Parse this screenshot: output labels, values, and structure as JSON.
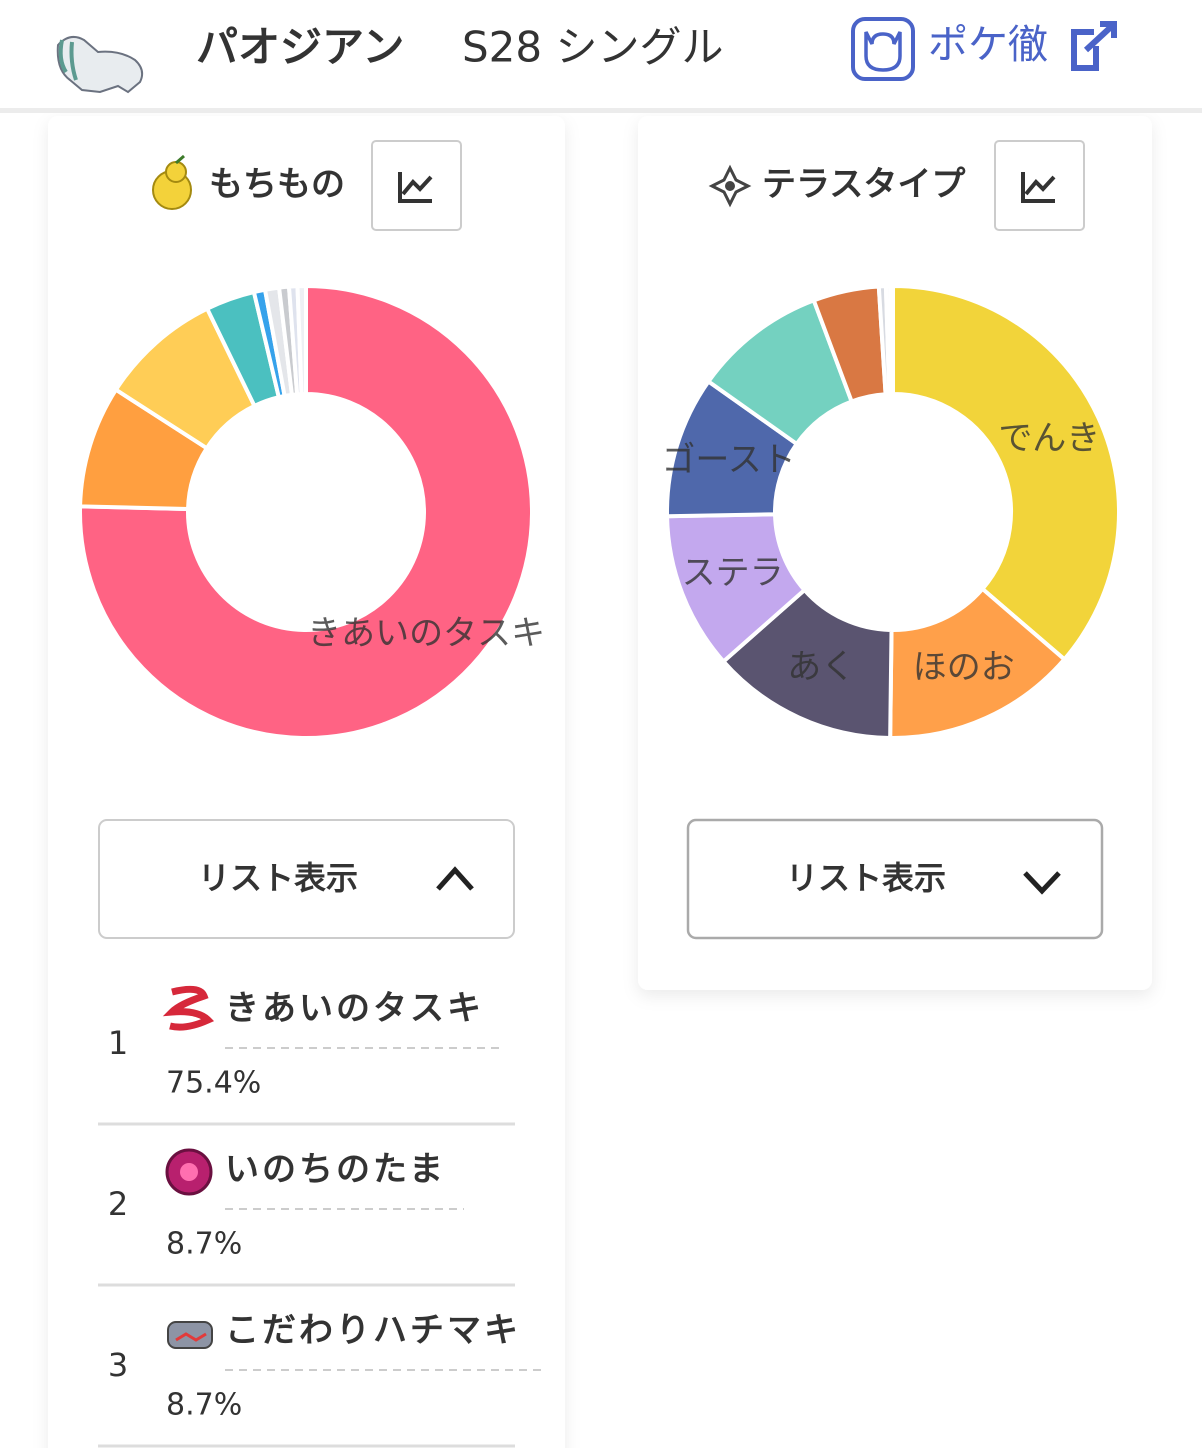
{
  "header": {
    "title": "パオジアン",
    "subtitle": "S28 シングル",
    "link": "ポケ徹"
  },
  "chart_data": [
    {
      "type": "pie",
      "title": "もちもの",
      "categories": [
        "きあいのタスキ",
        null,
        null,
        null,
        null,
        null,
        null,
        null,
        null
      ],
      "values": [
        75.4,
        8.7,
        8.7,
        3.5,
        0.8,
        1.0,
        0.7,
        0.6,
        0.6
      ],
      "colors": [
        "#ff6384",
        "#ff9f40",
        "#ffcd56",
        "#4bc0c0",
        "#36a2eb",
        "#e4e6ea",
        "#c9cbcf",
        "#dfe3ee",
        "#eef0f4"
      ]
    },
    {
      "type": "pie",
      "title": "テラスタイプ",
      "categories": [
        "でんき",
        "ほのお",
        "あく",
        "ステラ",
        "ゴースト",
        null,
        null,
        null,
        null,
        null
      ],
      "values": [
        36.3,
        13.9,
        13.3,
        11.2,
        10.1,
        9.5,
        4.7,
        0.5,
        0.3,
        0.2
      ],
      "colors": [
        "#f2d43a",
        "#ffa04a",
        "#5a5470",
        "#c3a8ee",
        "#4f68ab",
        "#74d1c0",
        "#d97843",
        "#d8dbe2",
        "#e6e8ee",
        "#c9cbcf"
      ]
    }
  ],
  "items_panel": {
    "toggle": "リスト表示",
    "list": [
      {
        "rank": 1,
        "name": "きあいのタスキ",
        "share": "75.4%"
      },
      {
        "rank": 2,
        "name": "いのちのたま",
        "share": "8.7%"
      },
      {
        "rank": 3,
        "name": "こだわりハチマキ",
        "share": "8.7%"
      }
    ]
  },
  "tera_panel": {
    "toggle": "リスト表示"
  }
}
